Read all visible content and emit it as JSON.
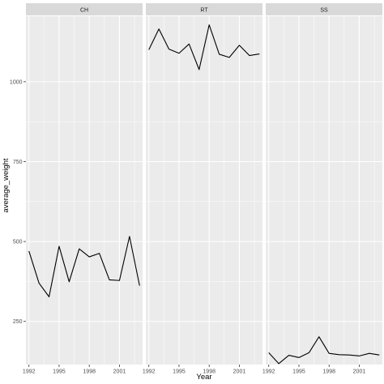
{
  "chart_data": {
    "type": "line",
    "layout": "facet_wrap",
    "xlabel": "Year",
    "ylabel": "average_weight",
    "xlim": [
      1991.7,
      2003.3
    ],
    "ylim": [
      115,
      1205
    ],
    "x_ticks": [
      1992,
      1995,
      1998,
      2001
    ],
    "y_ticks": [
      250,
      500,
      750,
      1000
    ],
    "grid": true,
    "colors": {
      "panel_bg": "#EBEBEB",
      "strip_bg": "#D9D9D9",
      "grid_major": "#FFFFFF",
      "line": "#000000"
    },
    "panels": [
      {
        "strip": "CH",
        "x": [
          1992,
          1993,
          1994,
          1995,
          1996,
          1997,
          1998,
          1999,
          2000,
          2001,
          2002,
          2003
        ],
        "y": [
          470,
          370,
          327,
          485,
          374,
          477,
          452,
          463,
          380,
          378,
          516,
          362
        ]
      },
      {
        "strip": "RT",
        "x": [
          1992,
          1993,
          1994,
          1995,
          1996,
          1997,
          1998,
          1999,
          2000,
          2001,
          2002,
          2003
        ],
        "y": [
          1100,
          1165,
          1102,
          1089,
          1118,
          1038,
          1178,
          1086,
          1076,
          1114,
          1082,
          1087
        ]
      },
      {
        "strip": "SS",
        "x": [
          1992,
          1993,
          1994,
          1995,
          1996,
          1997,
          1998,
          1999,
          2000,
          2001,
          2002,
          2003
        ],
        "y": [
          152,
          118,
          144,
          137,
          152,
          202,
          150,
          146,
          145,
          142,
          150,
          145
        ]
      }
    ]
  }
}
